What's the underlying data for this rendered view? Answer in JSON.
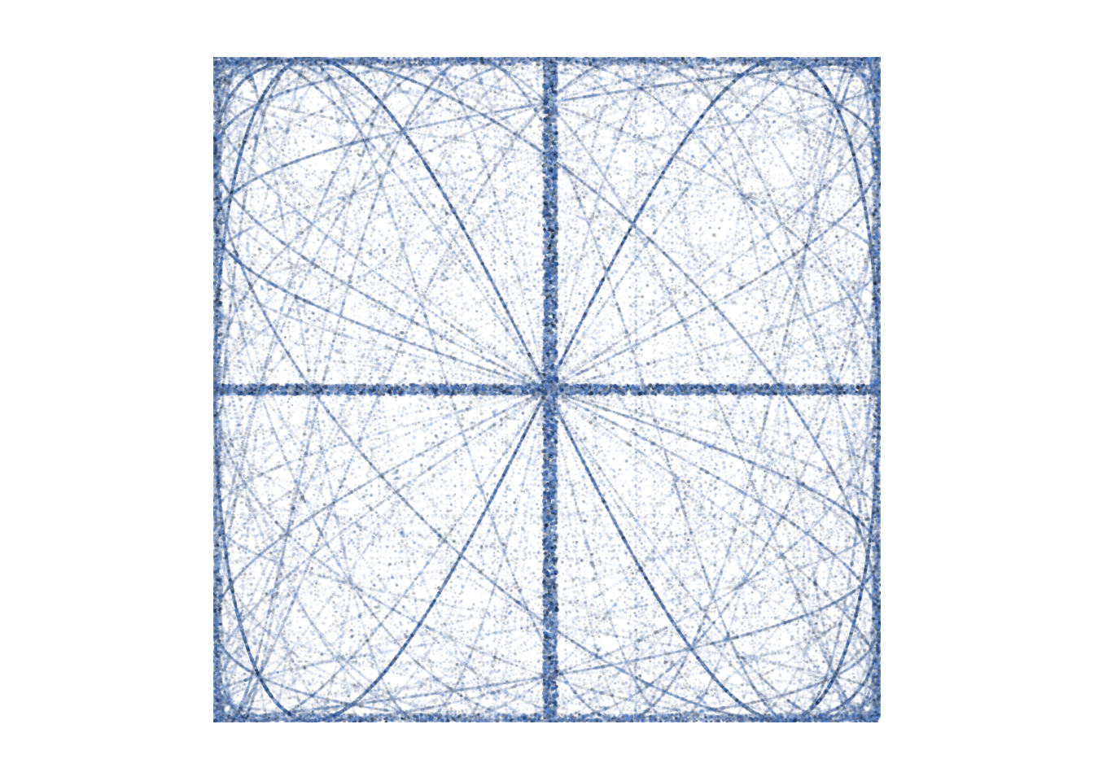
{
  "artwork": {
    "kind": "dotted Lissajous curve pattern",
    "background_color": "#ffffff",
    "palette": [
      "#0f1f3a",
      "#1f3a66",
      "#2f5ea8",
      "#3d6fc2",
      "#5b88cc",
      "#8fa9d6",
      "#b9c8e3",
      "#6b7280",
      "#9ca3af"
    ]
  }
}
